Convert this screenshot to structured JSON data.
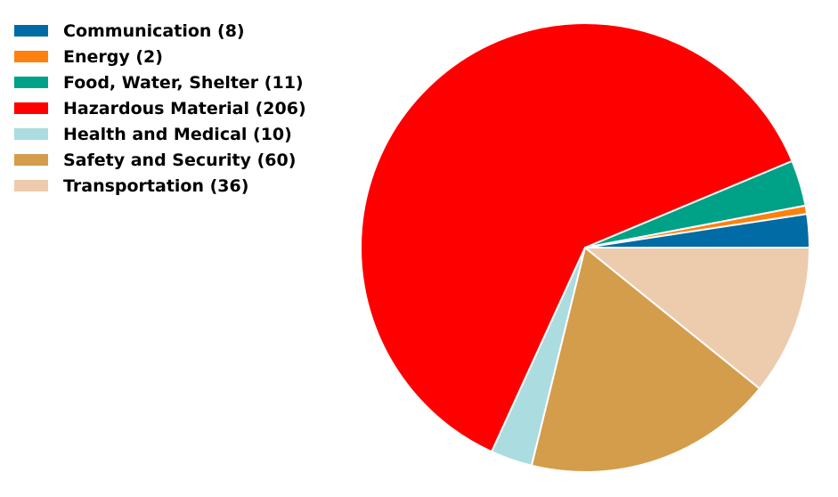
{
  "chart_data": {
    "type": "pie",
    "title": "",
    "start_angle_deg": 0,
    "direction": "counterclockwise",
    "legend_placement": "top-left",
    "slice_edge_color": "#ffffff",
    "slices": [
      {
        "label": "Communication (8)",
        "value": 8,
        "color": "#006ba4"
      },
      {
        "label": "Energy (2)",
        "value": 2,
        "color": "#ff800e"
      },
      {
        "label": "Food, Water, Shelter (11)",
        "value": 11,
        "color": "#00a287"
      },
      {
        "label": "Hazardous Material (206)",
        "value": 206,
        "color": "#ff0000"
      },
      {
        "label": "Health and Medical (10)",
        "value": 10,
        "color": "#abdcdf"
      },
      {
        "label": "Safety and Security (60)",
        "value": 60,
        "color": "#d49d4b"
      },
      {
        "label": "Transportation (36)",
        "value": 36,
        "color": "#edcbad"
      }
    ]
  }
}
